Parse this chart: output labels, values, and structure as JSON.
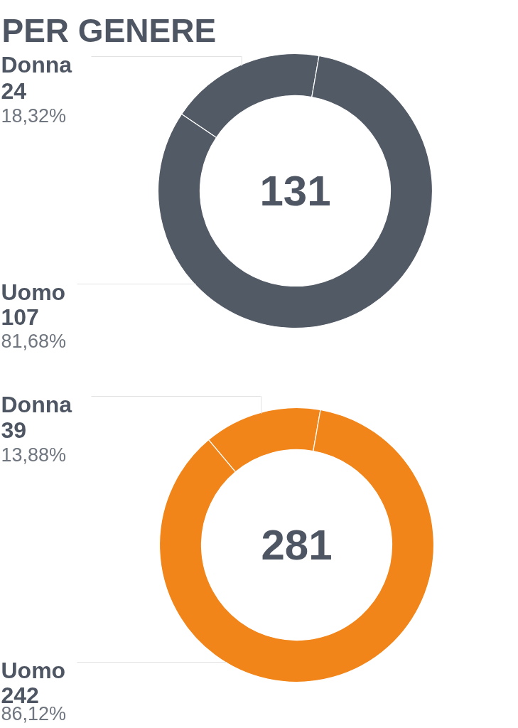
{
  "chart_data": [
    {
      "type": "donut",
      "title": "PER GENERE",
      "categories": [
        "Donna",
        "Uomo"
      ],
      "values": [
        24,
        107
      ],
      "colors": [
        "#525a66",
        "#525a66"
      ],
      "value_labels": [
        "24\n18,32%",
        "107\n81,68%"
      ],
      "annotations": [
        "131"
      ]
    },
    {
      "type": "donut",
      "categories": [
        "Donna",
        "Uomo"
      ],
      "values": [
        39,
        242
      ],
      "colors": [
        "#f28519",
        "#f28519"
      ],
      "value_labels": [
        "39\n13,88%",
        "242\n86,12%"
      ],
      "annotations": [
        "281"
      ]
    }
  ]
}
